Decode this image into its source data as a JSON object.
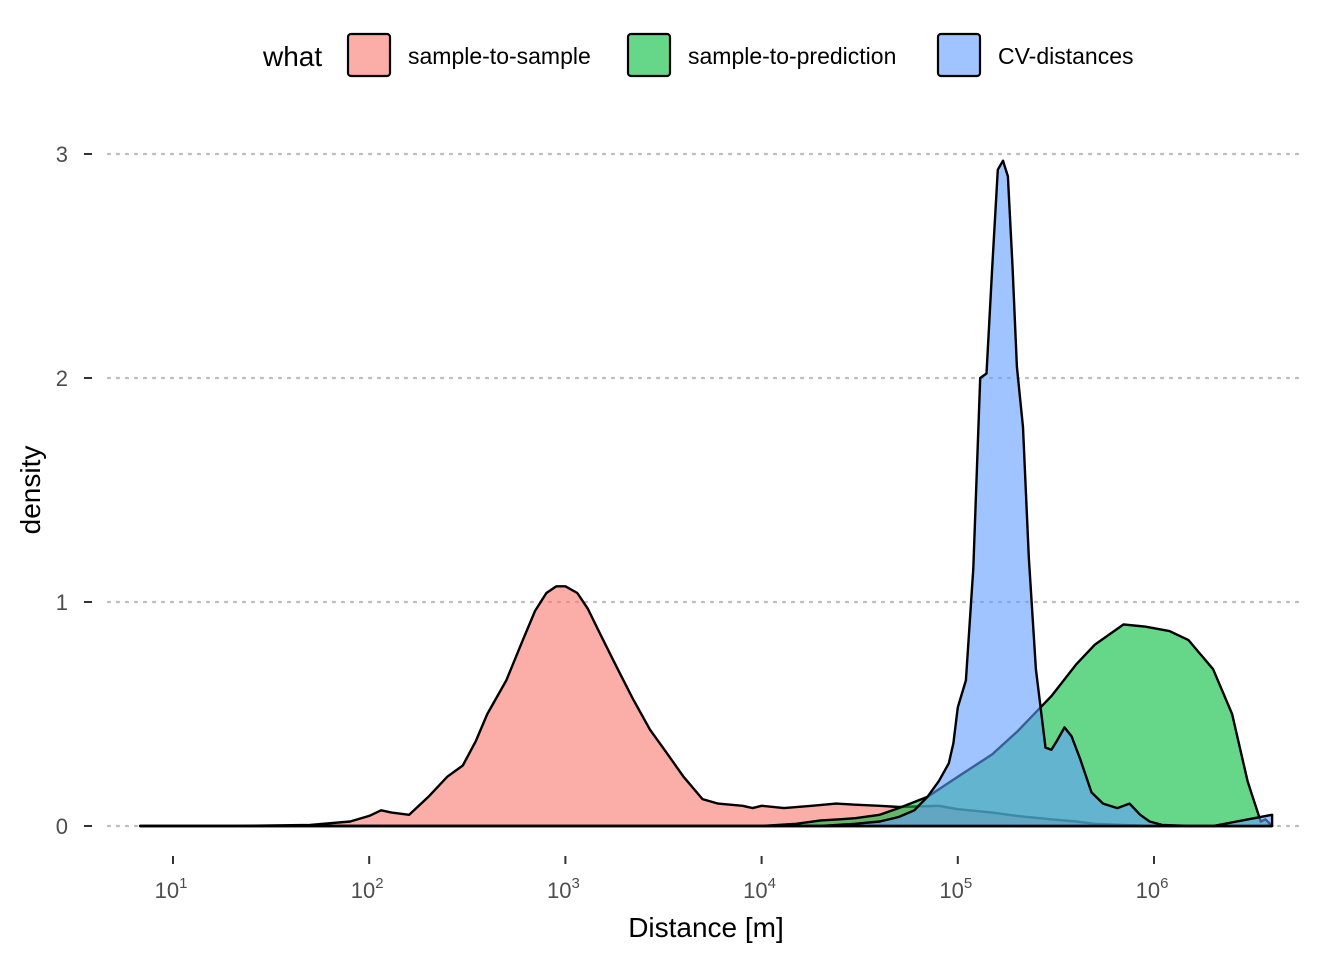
{
  "chart_data": {
    "type": "area",
    "subtype": "density",
    "xlabel": "Distance [m]",
    "ylabel": "density",
    "x_scale": "log10",
    "xlim": [
      6.8,
      4000000
    ],
    "ylim": [
      0,
      3
    ],
    "x_ticks": [
      {
        "value": 10,
        "base": "10",
        "exp": "1"
      },
      {
        "value": 100,
        "base": "10",
        "exp": "2"
      },
      {
        "value": 1000,
        "base": "10",
        "exp": "3"
      },
      {
        "value": 10000,
        "base": "10",
        "exp": "4"
      },
      {
        "value": 100000,
        "base": "10",
        "exp": "5"
      },
      {
        "value": 1000000,
        "base": "10",
        "exp": "6"
      }
    ],
    "y_ticks": [
      {
        "value": 0,
        "label": "0"
      },
      {
        "value": 1,
        "label": "1"
      },
      {
        "value": 2,
        "label": "2"
      },
      {
        "value": 3,
        "label": "3"
      }
    ],
    "grid": "horizontal major, dotted",
    "legend": {
      "title": "what",
      "position": "top"
    },
    "series": [
      {
        "name": "sample-to-sample",
        "color": "#F8766D",
        "x": [
          6.8,
          10,
          20,
          50,
          80,
          100,
          115,
          130,
          160,
          200,
          250,
          300,
          350,
          400,
          500,
          600,
          700,
          800,
          900,
          1000,
          1150,
          1300,
          1500,
          1800,
          2200,
          2700,
          3200,
          4000,
          5000,
          6000,
          8000,
          9000,
          10000,
          13000,
          18000,
          24000,
          30000,
          40000,
          50000,
          80000,
          100000,
          150000,
          200000,
          300000,
          400000,
          500000,
          700000,
          1000000,
          2000000,
          4000000
        ],
        "y": [
          0,
          0,
          0,
          0.005,
          0.02,
          0.045,
          0.07,
          0.06,
          0.05,
          0.13,
          0.22,
          0.27,
          0.38,
          0.5,
          0.65,
          0.82,
          0.96,
          1.04,
          1.07,
          1.07,
          1.04,
          0.97,
          0.86,
          0.72,
          0.57,
          0.43,
          0.34,
          0.22,
          0.12,
          0.1,
          0.09,
          0.08,
          0.09,
          0.08,
          0.09,
          0.1,
          0.095,
          0.09,
          0.085,
          0.09,
          0.075,
          0.06,
          0.045,
          0.03,
          0.02,
          0.01,
          0.005,
          0,
          0,
          0
        ]
      },
      {
        "name": "sample-to-prediction",
        "color": "#00BA38",
        "x": [
          6.8,
          10000,
          15000,
          20000,
          25000,
          30000,
          40000,
          50000,
          70000,
          100000,
          150000,
          200000,
          300000,
          400000,
          500000,
          700000,
          900000,
          1200000,
          1500000,
          2000000,
          2500000,
          3000000,
          3500000,
          3700000,
          4000000
        ],
        "y": [
          0,
          0,
          0.01,
          0.025,
          0.03,
          0.035,
          0.05,
          0.08,
          0.13,
          0.22,
          0.32,
          0.42,
          0.58,
          0.72,
          0.81,
          0.9,
          0.89,
          0.87,
          0.83,
          0.7,
          0.5,
          0.2,
          0.02,
          0.03,
          0
        ]
      },
      {
        "name": "CV-distances",
        "color": "#619CFF",
        "x": [
          6.8,
          20000,
          30000,
          40000,
          50000,
          60000,
          70000,
          80000,
          90000,
          95000,
          100000,
          110000,
          120000,
          130000,
          140000,
          150000,
          160000,
          170000,
          180000,
          190000,
          200000,
          215000,
          230000,
          250000,
          280000,
          300000,
          320000,
          350000,
          380000,
          420000,
          480000,
          550000,
          650000,
          750000,
          850000,
          950000,
          1100000,
          1500000,
          2000000,
          4000000
        ],
        "y": [
          0,
          0,
          0.01,
          0.02,
          0.04,
          0.07,
          0.13,
          0.2,
          0.28,
          0.37,
          0.53,
          0.65,
          1.15,
          2.0,
          2.02,
          2.5,
          2.93,
          2.97,
          2.9,
          2.5,
          2.05,
          1.78,
          1.2,
          0.7,
          0.35,
          0.34,
          0.38,
          0.44,
          0.4,
          0.3,
          0.15,
          0.1,
          0.08,
          0.1,
          0.05,
          0.02,
          0.005,
          0,
          0,
          0.05
        ]
      }
    ]
  }
}
